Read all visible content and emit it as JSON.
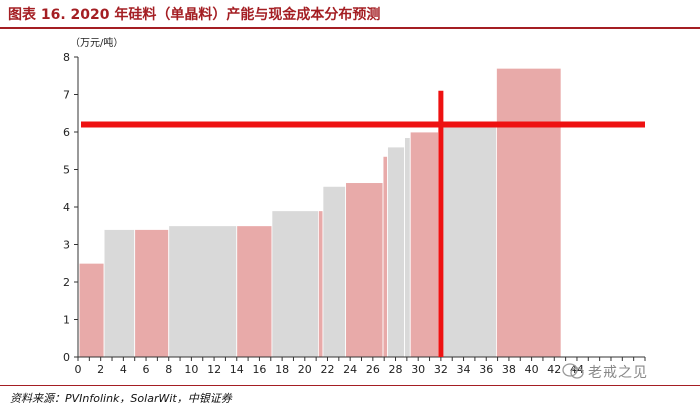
{
  "figure": {
    "title": "图表 16. 2020 年硅料（单晶料）产能与现金成本分布预测",
    "source": "资料来源：PVInfolink，SolarWit，中银证券",
    "watermark": "老戒之见"
  },
  "colors": {
    "gray": "#d9d9d9",
    "pink": "#e8aaa9",
    "red": "#ee1111",
    "title": "#a41e23"
  },
  "chart_data": {
    "type": "bar",
    "subtype": "cost-curve (variable-width bars)",
    "unit_label": "（万元/吨）",
    "xlim": [
      0,
      50
    ],
    "ylim": [
      0,
      8
    ],
    "x_ticks": [
      0,
      2,
      4,
      6,
      8,
      10,
      12,
      14,
      16,
      18,
      20,
      22,
      24,
      26,
      28,
      30,
      32,
      34,
      36,
      38,
      40,
      42,
      44
    ],
    "y_ticks": [
      0,
      1,
      2,
      3,
      4,
      5,
      6,
      7,
      8
    ],
    "bars": [
      {
        "x0": 0.1,
        "x1": 2.3,
        "value": 2.5,
        "color": "pink"
      },
      {
        "x0": 2.3,
        "x1": 5.0,
        "value": 3.4,
        "color": "gray"
      },
      {
        "x0": 5.0,
        "x1": 8.0,
        "value": 3.4,
        "color": "pink"
      },
      {
        "x0": 8.0,
        "x1": 14.0,
        "value": 3.5,
        "color": "gray"
      },
      {
        "x0": 14.0,
        "x1": 17.1,
        "value": 3.5,
        "color": "pink"
      },
      {
        "x0": 17.1,
        "x1": 21.2,
        "value": 3.9,
        "color": "gray"
      },
      {
        "x0": 21.2,
        "x1": 21.6,
        "value": 3.9,
        "color": "pink"
      },
      {
        "x0": 21.6,
        "x1": 23.6,
        "value": 4.55,
        "color": "gray"
      },
      {
        "x0": 23.6,
        "x1": 26.9,
        "value": 4.65,
        "color": "pink"
      },
      {
        "x0": 26.9,
        "x1": 27.3,
        "value": 5.35,
        "color": "pink"
      },
      {
        "x0": 27.3,
        "x1": 28.8,
        "value": 5.6,
        "color": "gray"
      },
      {
        "x0": 28.8,
        "x1": 29.3,
        "value": 5.85,
        "color": "gray"
      },
      {
        "x0": 29.3,
        "x1": 31.8,
        "value": 6.0,
        "color": "pink"
      },
      {
        "x0": 31.8,
        "x1": 36.9,
        "value": 6.2,
        "color": "gray"
      },
      {
        "x0": 36.9,
        "x1": 42.6,
        "value": 7.7,
        "color": "pink"
      }
    ],
    "reference_lines": [
      {
        "orientation": "horizontal",
        "value": 6.2,
        "color": "red"
      },
      {
        "orientation": "vertical",
        "value": 32.0,
        "from": 0,
        "to": 7.1,
        "color": "red"
      }
    ],
    "grid": false,
    "legend": "none"
  }
}
